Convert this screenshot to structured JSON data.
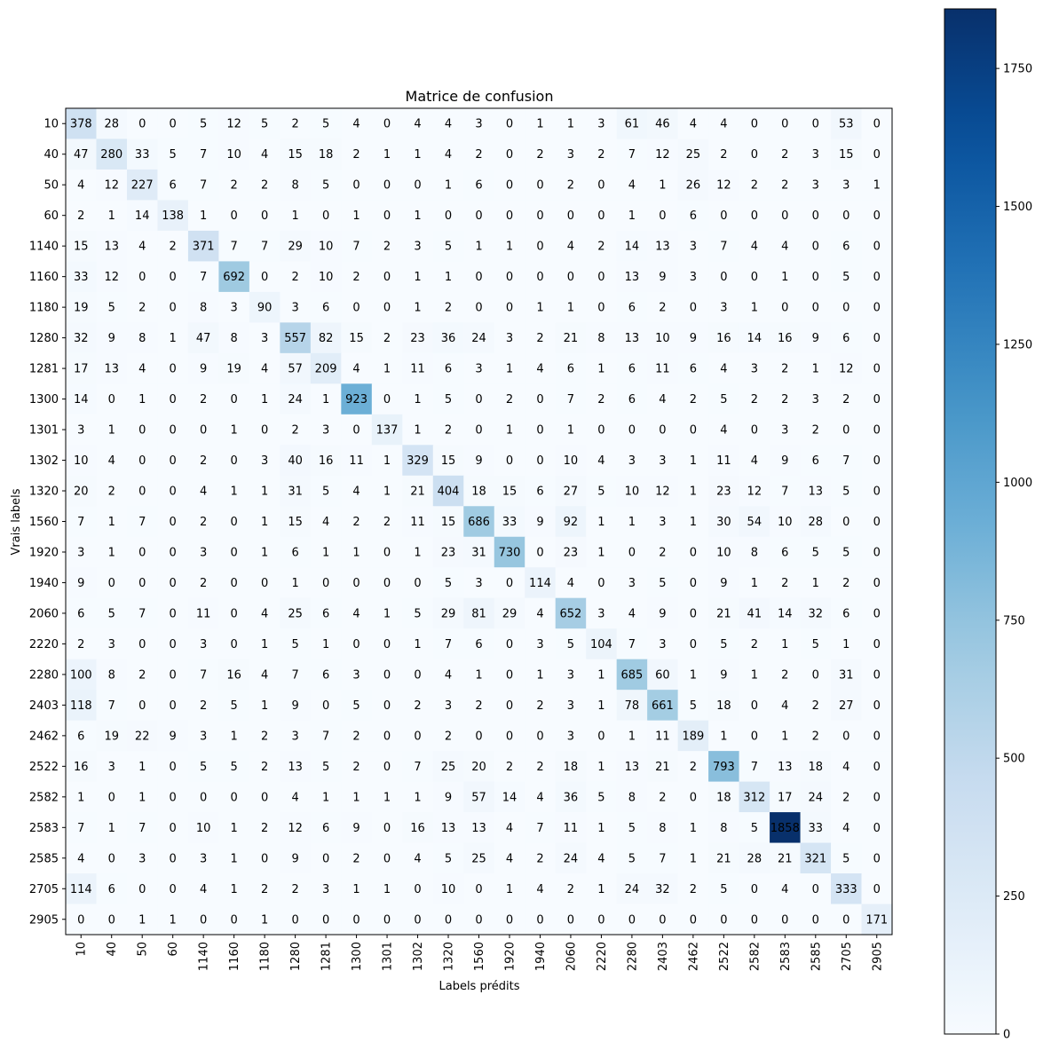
{
  "chart_data": {
    "type": "heatmap",
    "title": "Matrice de confusion",
    "xlabel": "Labels prédits",
    "ylabel": "Vrais labels",
    "labels": [
      "10",
      "40",
      "50",
      "60",
      "1140",
      "1160",
      "1180",
      "1280",
      "1281",
      "1300",
      "1301",
      "1302",
      "1320",
      "1560",
      "1920",
      "1940",
      "2060",
      "2220",
      "2280",
      "2403",
      "2462",
      "2522",
      "2582",
      "2583",
      "2585",
      "2705",
      "2905"
    ],
    "matrix": [
      [
        378,
        28,
        0,
        0,
        5,
        12,
        5,
        2,
        5,
        4,
        0,
        4,
        4,
        3,
        0,
        1,
        1,
        3,
        61,
        46,
        4,
        4,
        0,
        0,
        0,
        53,
        0
      ],
      [
        47,
        280,
        33,
        5,
        7,
        10,
        4,
        15,
        18,
        2,
        1,
        1,
        4,
        2,
        0,
        2,
        3,
        2,
        7,
        12,
        25,
        2,
        0,
        2,
        3,
        15,
        0
      ],
      [
        4,
        12,
        227,
        6,
        7,
        2,
        2,
        8,
        5,
        0,
        0,
        0,
        1,
        6,
        0,
        0,
        2,
        0,
        4,
        1,
        26,
        12,
        2,
        2,
        3,
        3,
        1
      ],
      [
        2,
        1,
        14,
        138,
        1,
        0,
        0,
        1,
        0,
        1,
        0,
        1,
        0,
        0,
        0,
        0,
        0,
        0,
        1,
        0,
        6,
        0,
        0,
        0,
        0,
        0,
        0
      ],
      [
        15,
        13,
        4,
        2,
        371,
        7,
        7,
        29,
        10,
        7,
        2,
        3,
        5,
        1,
        1,
        0,
        4,
        2,
        14,
        13,
        3,
        7,
        4,
        4,
        0,
        6,
        0
      ],
      [
        33,
        12,
        0,
        0,
        7,
        692,
        0,
        2,
        10,
        2,
        0,
        1,
        1,
        0,
        0,
        0,
        0,
        0,
        13,
        9,
        3,
        0,
        0,
        1,
        0,
        5,
        0
      ],
      [
        19,
        5,
        2,
        0,
        8,
        3,
        90,
        3,
        6,
        0,
        0,
        1,
        2,
        0,
        0,
        1,
        1,
        0,
        6,
        2,
        0,
        3,
        1,
        0,
        0,
        0,
        0
      ],
      [
        32,
        9,
        8,
        1,
        47,
        8,
        3,
        557,
        82,
        15,
        2,
        23,
        36,
        24,
        3,
        2,
        21,
        8,
        13,
        10,
        9,
        16,
        14,
        16,
        9,
        6,
        0
      ],
      [
        17,
        13,
        4,
        0,
        9,
        19,
        4,
        57,
        209,
        4,
        1,
        11,
        6,
        3,
        1,
        4,
        6,
        1,
        6,
        11,
        6,
        4,
        3,
        2,
        1,
        12,
        0
      ],
      [
        14,
        0,
        1,
        0,
        2,
        0,
        1,
        24,
        1,
        923,
        0,
        1,
        5,
        0,
        2,
        0,
        7,
        2,
        6,
        4,
        2,
        5,
        2,
        2,
        3,
        2,
        0
      ],
      [
        3,
        1,
        0,
        0,
        0,
        1,
        0,
        2,
        3,
        0,
        137,
        1,
        2,
        0,
        1,
        0,
        1,
        0,
        0,
        0,
        0,
        4,
        0,
        3,
        2,
        0,
        0
      ],
      [
        10,
        4,
        0,
        0,
        2,
        0,
        3,
        40,
        16,
        11,
        1,
        329,
        15,
        9,
        0,
        0,
        10,
        4,
        3,
        3,
        1,
        11,
        4,
        9,
        6,
        7,
        0
      ],
      [
        20,
        2,
        0,
        0,
        4,
        1,
        1,
        31,
        5,
        4,
        1,
        21,
        404,
        18,
        15,
        6,
        27,
        5,
        10,
        12,
        1,
        23,
        12,
        7,
        13,
        5,
        0
      ],
      [
        7,
        1,
        7,
        0,
        2,
        0,
        1,
        15,
        4,
        2,
        2,
        11,
        15,
        686,
        33,
        9,
        92,
        1,
        1,
        3,
        1,
        30,
        54,
        10,
        28,
        0,
        0
      ],
      [
        3,
        1,
        0,
        0,
        3,
        0,
        1,
        6,
        1,
        1,
        0,
        1,
        23,
        31,
        730,
        0,
        23,
        1,
        0,
        2,
        0,
        10,
        8,
        6,
        5,
        5,
        0
      ],
      [
        9,
        0,
        0,
        0,
        2,
        0,
        0,
        1,
        0,
        0,
        0,
        0,
        5,
        3,
        0,
        114,
        4,
        0,
        3,
        5,
        0,
        9,
        1,
        2,
        1,
        2,
        0
      ],
      [
        6,
        5,
        7,
        0,
        11,
        0,
        4,
        25,
        6,
        4,
        1,
        5,
        29,
        81,
        29,
        4,
        652,
        3,
        4,
        9,
        0,
        21,
        41,
        14,
        32,
        6,
        0
      ],
      [
        2,
        3,
        0,
        0,
        3,
        0,
        1,
        5,
        1,
        0,
        0,
        1,
        7,
        6,
        0,
        3,
        5,
        104,
        7,
        3,
        0,
        5,
        2,
        1,
        5,
        1,
        0
      ],
      [
        100,
        8,
        2,
        0,
        7,
        16,
        4,
        7,
        6,
        3,
        0,
        0,
        4,
        1,
        0,
        1,
        3,
        1,
        685,
        60,
        1,
        9,
        1,
        2,
        0,
        31,
        0
      ],
      [
        118,
        7,
        0,
        0,
        2,
        5,
        1,
        9,
        0,
        5,
        0,
        2,
        3,
        2,
        0,
        2,
        3,
        1,
        78,
        661,
        5,
        18,
        0,
        4,
        2,
        27,
        0
      ],
      [
        6,
        19,
        22,
        9,
        3,
        1,
        2,
        3,
        7,
        2,
        0,
        0,
        2,
        0,
        0,
        0,
        3,
        0,
        1,
        11,
        189,
        1,
        0,
        1,
        2,
        0,
        0
      ],
      [
        16,
        3,
        1,
        0,
        5,
        5,
        2,
        13,
        5,
        2,
        0,
        7,
        25,
        20,
        2,
        2,
        18,
        1,
        13,
        21,
        2,
        793,
        7,
        13,
        18,
        4,
        0
      ],
      [
        1,
        0,
        1,
        0,
        0,
        0,
        0,
        4,
        1,
        1,
        1,
        1,
        9,
        57,
        14,
        4,
        36,
        5,
        8,
        2,
        0,
        18,
        312,
        17,
        24,
        2,
        0
      ],
      [
        7,
        1,
        7,
        0,
        10,
        1,
        2,
        12,
        6,
        9,
        0,
        16,
        13,
        13,
        4,
        7,
        11,
        1,
        5,
        8,
        1,
        8,
        5,
        1858,
        33,
        4,
        0
      ],
      [
        4,
        0,
        3,
        0,
        3,
        1,
        0,
        9,
        0,
        2,
        0,
        4,
        5,
        25,
        4,
        2,
        24,
        4,
        5,
        7,
        1,
        21,
        28,
        21,
        321,
        5,
        0
      ],
      [
        114,
        6,
        0,
        0,
        4,
        1,
        2,
        2,
        3,
        1,
        1,
        0,
        10,
        0,
        1,
        4,
        2,
        1,
        24,
        32,
        2,
        5,
        0,
        4,
        0,
        333,
        0
      ],
      [
        0,
        0,
        1,
        1,
        0,
        0,
        1,
        0,
        0,
        0,
        0,
        0,
        0,
        0,
        0,
        0,
        0,
        0,
        0,
        0,
        0,
        0,
        0,
        0,
        0,
        0,
        171
      ]
    ],
    "colormap": "Blues",
    "colormap_colors": [
      "#f7fbff",
      "#deebf7",
      "#c6dbef",
      "#9ecae1",
      "#6baed6",
      "#4292c6",
      "#2171b5",
      "#08519c",
      "#08306b"
    ],
    "vmin": 0,
    "vmax": 1858,
    "colorbar_ticks": [
      0,
      250,
      500,
      750,
      1000,
      1250,
      1500,
      1750
    ],
    "x_tick_rotation": "vertical",
    "grid": false
  }
}
